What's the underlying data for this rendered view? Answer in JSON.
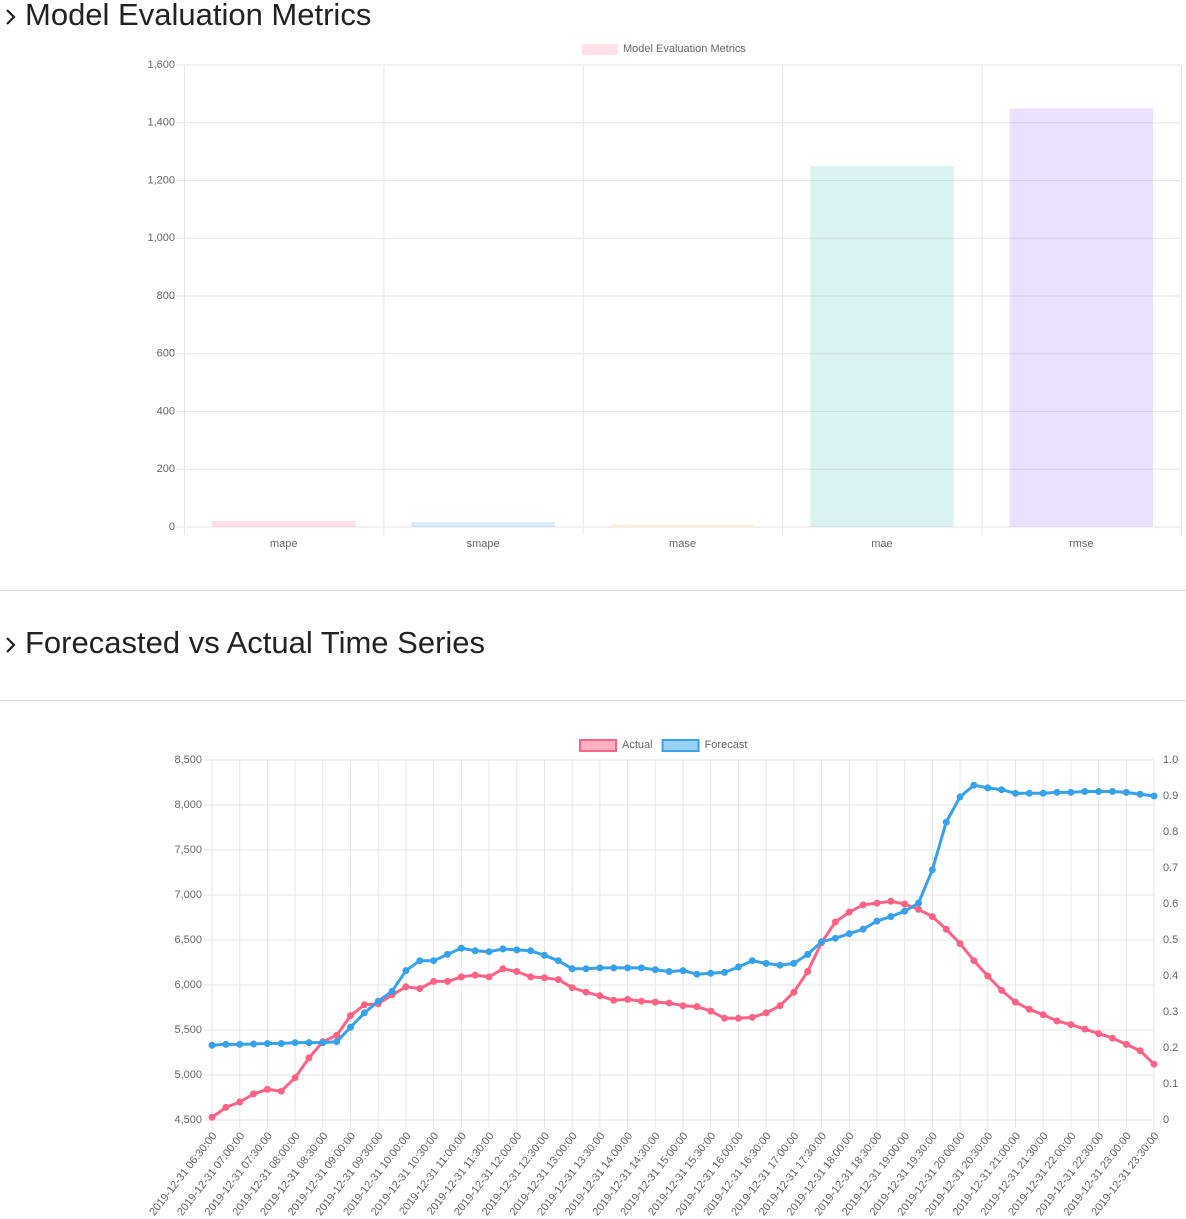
{
  "headings": [
    "Model Evaluation Metrics",
    "Forecasted vs Actual Time Series"
  ],
  "chart_data": [
    {
      "type": "bar",
      "categories": [
        "mape",
        "smape",
        "mase",
        "mae",
        "rmse"
      ],
      "series": [
        {
          "name": "Model Evaluation Metrics",
          "colors": [
            "rgba(255,99,132,0.2)",
            "rgba(54,162,235,0.2)",
            "rgba(255,206,86,0.2)",
            "rgba(75,192,192,0.2)",
            "rgba(153,102,255,0.2)"
          ],
          "values": [
            21,
            17,
            10,
            1250,
            1450
          ]
        }
      ],
      "ylim": [
        0,
        1600
      ],
      "yticks": [
        0,
        200,
        400,
        600,
        800,
        {
          "value": 1000,
          "label": "1,000"
        },
        {
          "value": 1200,
          "label": "1,200"
        },
        {
          "value": 1400,
          "label": "1,400"
        },
        {
          "value": 1600,
          "label": "1,600"
        }
      ],
      "grid": true
    },
    {
      "type": "line",
      "categories": [
        "2019-12-31 06:30:00",
        null,
        "2019-12-31 07:00:00",
        null,
        "2019-12-31 07:30:00",
        null,
        "2019-12-31 08:00:00",
        null,
        "2019-12-31 08:30:00",
        null,
        "2019-12-31 09:00:00",
        null,
        "2019-12-31 09:30:00",
        null,
        "2019-12-31 10:00:00",
        null,
        "2019-12-31 10:30:00",
        null,
        "2019-12-31 11:00:00",
        null,
        "2019-12-31 11:30:00",
        null,
        "2019-12-31 12:00:00",
        null,
        "2019-12-31 12:30:00",
        null,
        "2019-12-31 13:00:00",
        null,
        "2019-12-31 13:30:00",
        null,
        "2019-12-31 14:00:00",
        null,
        "2019-12-31 14:30:00",
        null,
        "2019-12-31 15:00:00",
        null,
        "2019-12-31 15:30:00",
        null,
        "2019-12-31 16:00:00",
        null,
        "2019-12-31 16:30:00",
        null,
        "2019-12-31 17:00:00",
        null,
        "2019-12-31 17:30:00",
        null,
        "2019-12-31 18:00:00",
        null,
        "2019-12-31 18:30:00",
        null,
        "2019-12-31 19:00:00",
        null,
        "2019-12-31 19:30:00",
        null,
        "2019-12-31 20:00:00",
        null,
        "2019-12-31 20:30:00",
        null,
        "2019-12-31 21:00:00",
        null,
        "2019-12-31 21:30:00",
        null,
        "2019-12-31 22:00:00",
        null,
        "2019-12-31 22:30:00",
        null,
        "2019-12-31 23:00:00",
        null,
        "2019-12-31 23:30:00"
      ],
      "series": [
        {
          "name": "Actual",
          "color": "#ff6384",
          "values": [
            4530,
            4640,
            4700,
            4790,
            4840,
            4820,
            4970,
            5190,
            5370,
            5440,
            5660,
            5780,
            5790,
            5890,
            5980,
            5960,
            6040,
            6040,
            6090,
            6110,
            6090,
            6180,
            6150,
            6090,
            6080,
            6060,
            5970,
            5920,
            5880,
            5830,
            5840,
            5820,
            5810,
            5800,
            5770,
            5760,
            5710,
            5630,
            5630,
            5640,
            5690,
            5770,
            5920,
            6150,
            6470,
            6700,
            6810,
            6890,
            6910,
            6930,
            6900,
            6840,
            6760,
            6620,
            6460,
            6270,
            6100,
            5940,
            5810,
            5730,
            5670,
            5600,
            5560,
            5510,
            5460,
            5410,
            5340,
            5270,
            5120
          ]
        },
        {
          "name": "Forecast",
          "color": "#36a2eb",
          "values": [
            5330,
            5340,
            5340,
            5345,
            5350,
            5350,
            5360,
            5360,
            5360,
            5370,
            5530,
            5690,
            5820,
            5930,
            6160,
            6270,
            6270,
            6340,
            6410,
            6380,
            6370,
            6400,
            6390,
            6380,
            6330,
            6270,
            6180,
            6180,
            6190,
            6190,
            6190,
            6190,
            6170,
            6150,
            6160,
            6120,
            6130,
            6140,
            6200,
            6270,
            6240,
            6220,
            6240,
            6340,
            6480,
            6520,
            6570,
            6620,
            6710,
            6760,
            6820,
            6910,
            7280,
            7810,
            8090,
            8220,
            8190,
            8170,
            8130,
            8130,
            8130,
            8140,
            8140,
            8150,
            8150,
            8150,
            8140,
            8120,
            8100
          ]
        }
      ],
      "ylim": [
        4500,
        8500
      ],
      "yticks": [
        {
          "value": 4500,
          "label": "4,500"
        },
        {
          "value": 5000,
          "label": "5,000"
        },
        {
          "value": 5500,
          "label": "5,500"
        },
        {
          "value": 6000,
          "label": "6,000"
        },
        {
          "value": 6500,
          "label": "6,500"
        },
        {
          "value": 7000,
          "label": "7,000"
        },
        {
          "value": 7500,
          "label": "7,500"
        },
        {
          "value": 8000,
          "label": "8,000"
        },
        {
          "value": 8500,
          "label": "8,500"
        }
      ],
      "y2lim": [
        0,
        1
      ],
      "y2ticks": [
        0,
        0.1,
        0.2,
        0.3,
        0.4,
        0.5,
        0.6,
        0.7,
        0.8,
        0.9,
        {
          "value": 1,
          "label": "1.0"
        }
      ],
      "grid": true
    }
  ]
}
